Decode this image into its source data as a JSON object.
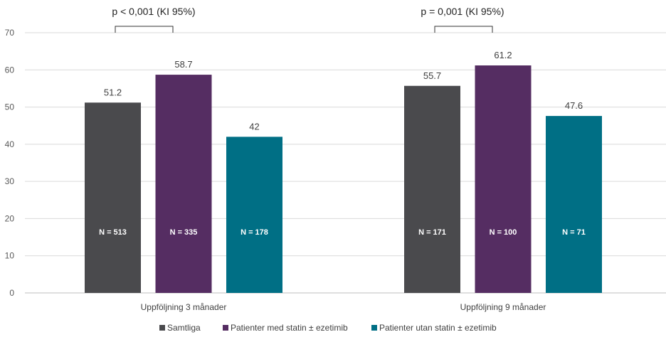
{
  "chart_data": {
    "type": "bar",
    "categories": [
      "Uppföljning 3 månader",
      "Uppföljning 9 månader"
    ],
    "series": [
      {
        "name": "Samtliga",
        "values": [
          51.2,
          55.7
        ],
        "n_labels": [
          "N = 513",
          "N = 171"
        ],
        "color": "#4a4a4d"
      },
      {
        "name": "Patienter med statin ± ezetimib",
        "values": [
          58.7,
          61.2
        ],
        "n_labels": [
          "N = 335",
          "N = 100"
        ],
        "color": "#552d62"
      },
      {
        "name": "Patienter utan statin ± ezetimib",
        "values": [
          42,
          47.6
        ],
        "n_labels": [
          "N = 178",
          "N = 71"
        ],
        "color": "#006f85"
      }
    ],
    "value_labels": [
      [
        "51.2",
        "55.7"
      ],
      [
        "58.7",
        "61.2"
      ],
      [
        "42",
        "47.6"
      ]
    ],
    "annotations": [
      "p < 0,001 (KI 95%)",
      "p = 0,001 (KI 95%)"
    ],
    "yticks": [
      "0",
      "10",
      "20",
      "30",
      "40",
      "50",
      "60",
      "70"
    ],
    "ylim": [
      0,
      70
    ],
    "xlabel": "",
    "ylabel": "",
    "title": "",
    "grid": true,
    "legend": "bottom"
  }
}
